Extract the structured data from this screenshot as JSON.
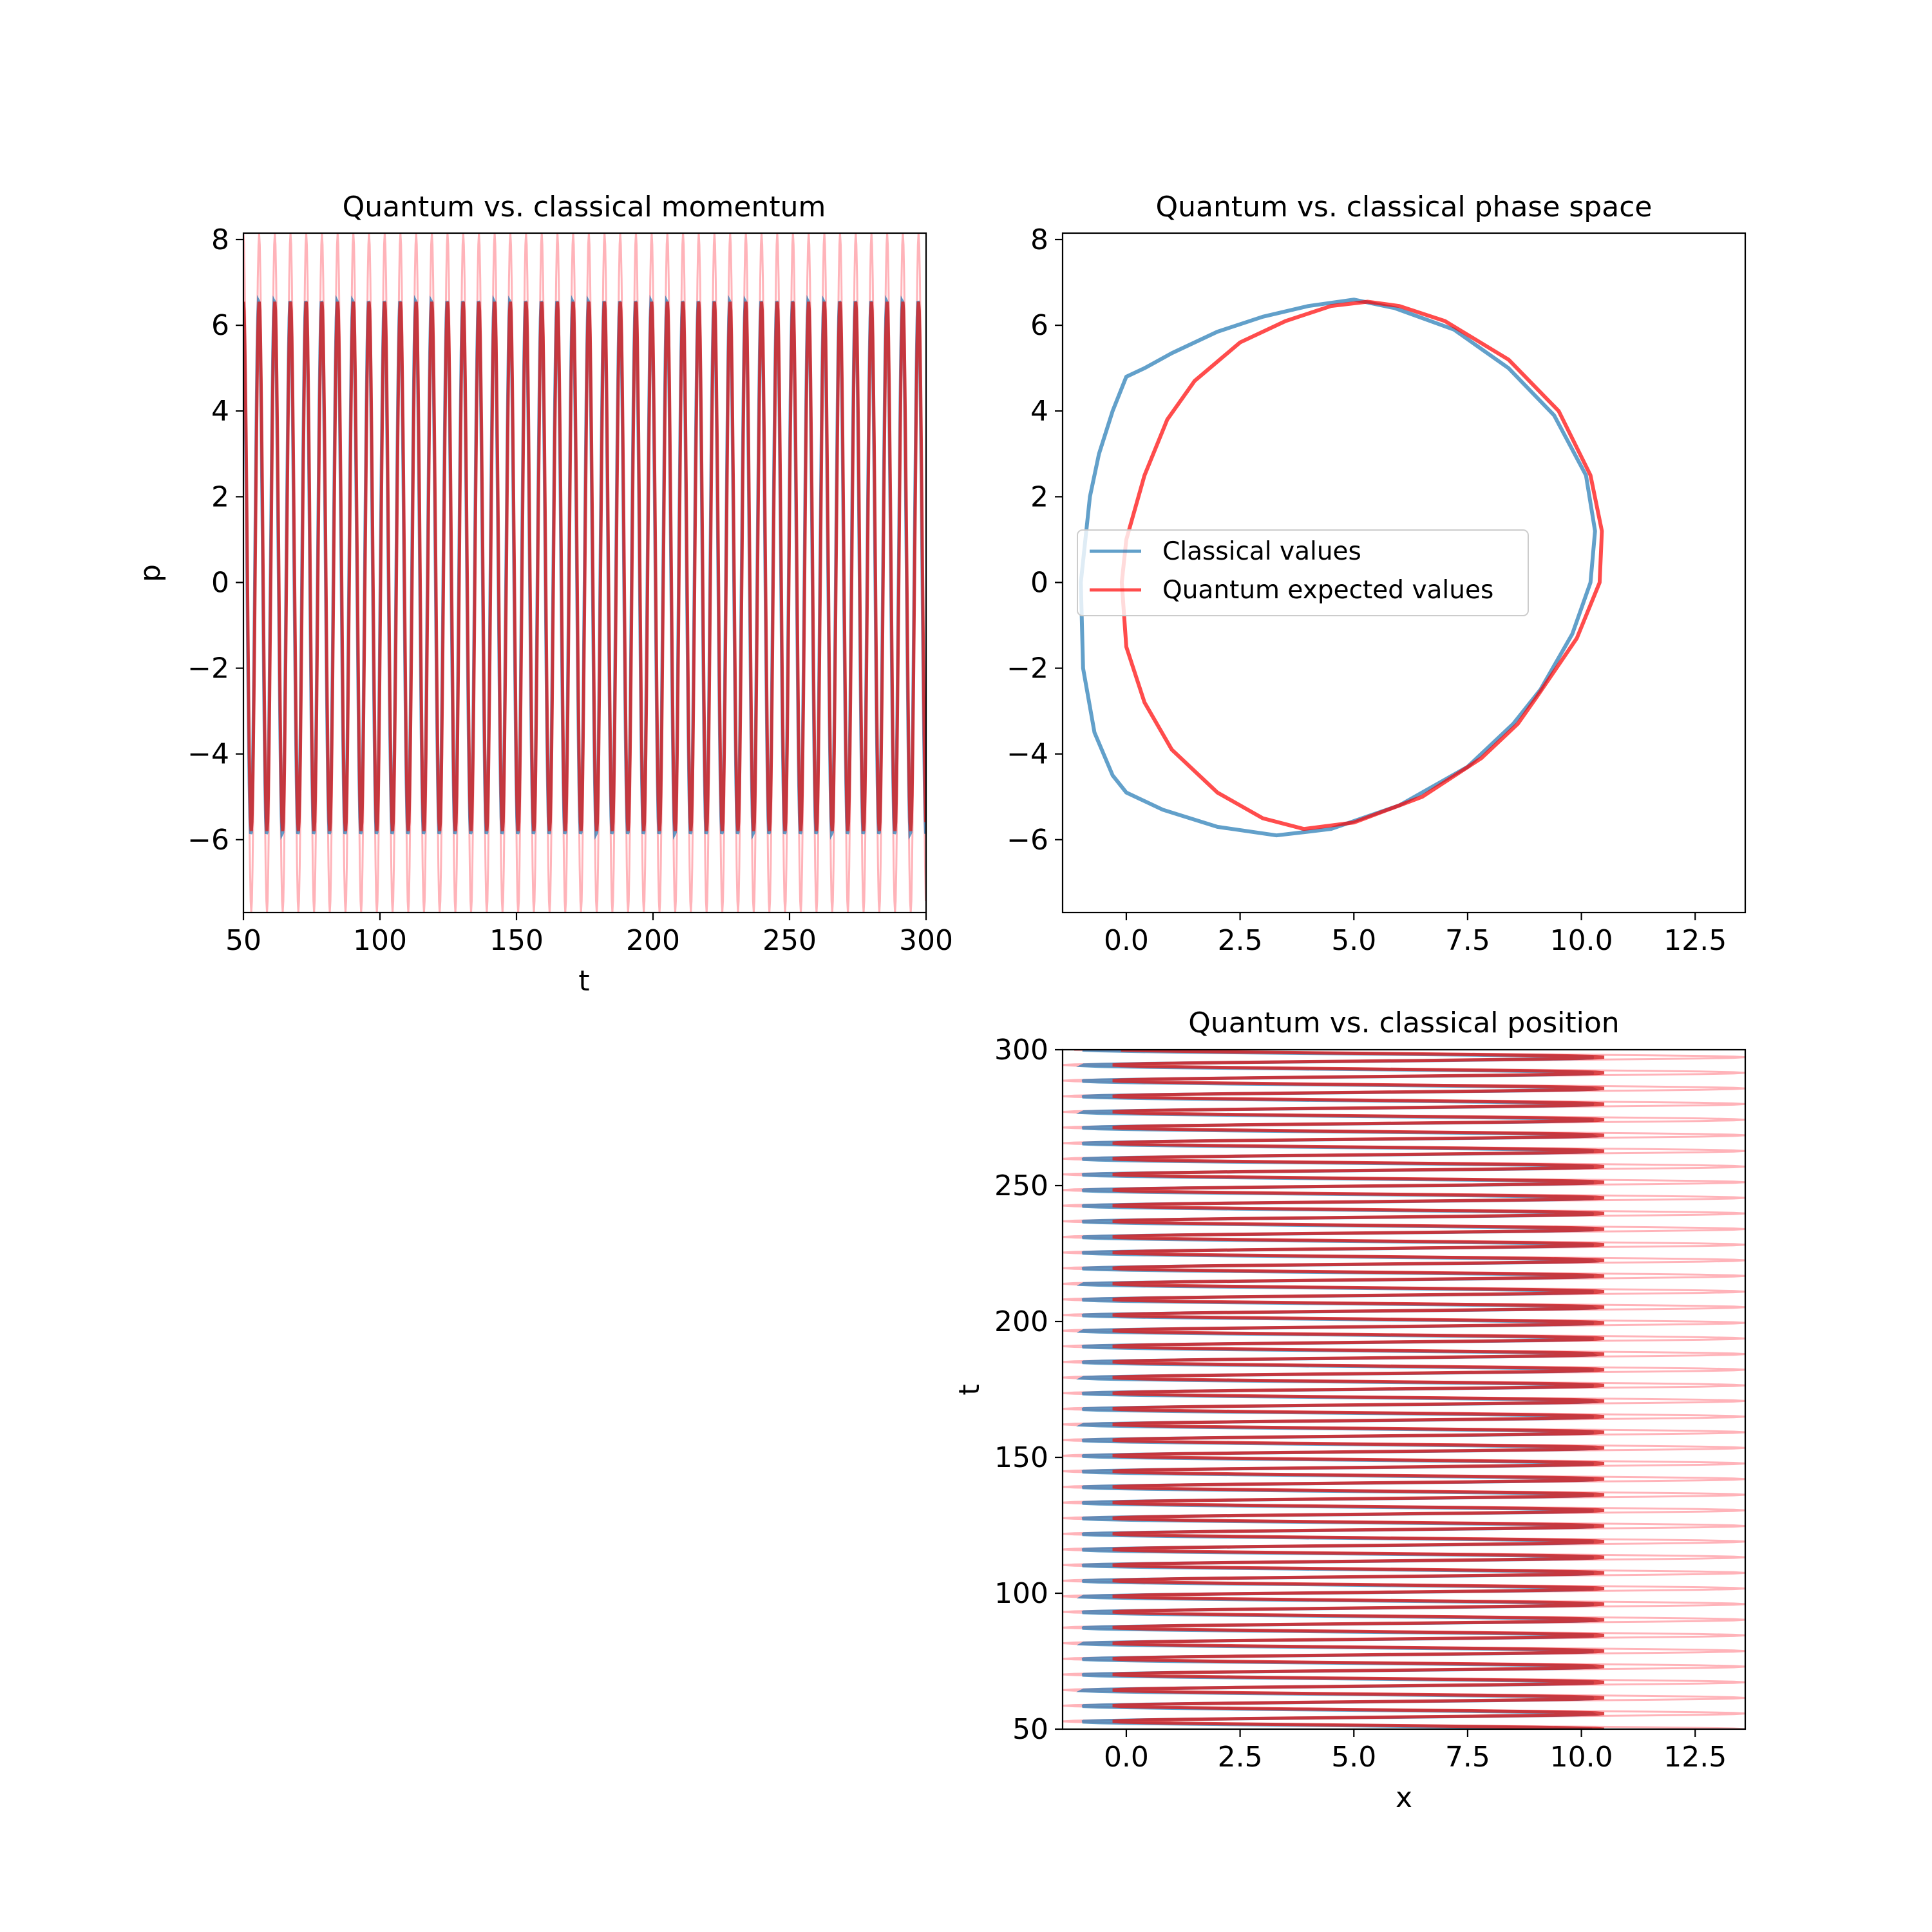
{
  "chart_data": [
    {
      "type": "line",
      "title": "Quantum vs. classical momentum",
      "xlabel": "t",
      "ylabel": "p",
      "xlim": [
        50,
        300
      ],
      "ylim": [
        -7.7,
        8.15
      ],
      "xticks": [
        "50",
        "100",
        "150",
        "200",
        "250",
        "300"
      ],
      "yticks": [
        "−6",
        "−4",
        "−2",
        "0",
        "2",
        "4",
        "6",
        "8"
      ],
      "series": [
        {
          "style": "uncertainty-envelope",
          "color": "#ff9aa2",
          "period": 5.75,
          "amplitude_range": [
            -7.7,
            8.15
          ]
        },
        {
          "style": "classical",
          "color": "#1f77b4",
          "period": 5.75,
          "range": [
            -5.9,
            6.6
          ]
        },
        {
          "style": "quantum",
          "color": "#d62728",
          "period": 5.75,
          "range": [
            -5.8,
            6.55
          ]
        }
      ]
    },
    {
      "type": "line",
      "title": "Quantum vs. classical phase space",
      "xlabel": "",
      "ylabel": "",
      "xlim": [
        -1.4,
        13.6
      ],
      "ylim": [
        -7.7,
        8.15
      ],
      "xticks": [
        "0.0",
        "2.5",
        "5.0",
        "7.5",
        "10.0",
        "12.5"
      ],
      "yticks": [
        "−6",
        "−4",
        "−2",
        "0",
        "2",
        "4",
        "6",
        "8"
      ],
      "legend": {
        "placement": "center-left",
        "entries": [
          "Classical values",
          "Quantum expected values"
        ]
      },
      "series": [
        {
          "name": "Classical values",
          "color": "#1f77b4",
          "points": [
            [
              9.1,
              -2.5
            ],
            [
              9.8,
              -1.2
            ],
            [
              10.2,
              0.0
            ],
            [
              10.3,
              1.2
            ],
            [
              10.1,
              2.5
            ],
            [
              9.4,
              3.9
            ],
            [
              8.4,
              5.0
            ],
            [
              7.2,
              5.9
            ],
            [
              5.9,
              6.4
            ],
            [
              5.0,
              6.6
            ],
            [
              4.0,
              6.45
            ],
            [
              3.0,
              6.2
            ],
            [
              2.0,
              5.85
            ],
            [
              1.0,
              5.35
            ],
            [
              0.4,
              5.0
            ],
            [
              0.0,
              4.8
            ],
            [
              -0.3,
              4.0
            ],
            [
              -0.6,
              3.0
            ],
            [
              -0.8,
              2.0
            ],
            [
              -1.0,
              0.0
            ],
            [
              -0.95,
              -2.0
            ],
            [
              -0.7,
              -3.5
            ],
            [
              -0.3,
              -4.5
            ],
            [
              0.0,
              -4.9
            ],
            [
              0.8,
              -5.3
            ],
            [
              2.0,
              -5.7
            ],
            [
              3.3,
              -5.9
            ],
            [
              4.5,
              -5.75
            ],
            [
              6.0,
              -5.2
            ],
            [
              7.5,
              -4.3
            ],
            [
              8.5,
              -3.3
            ],
            [
              9.1,
              -2.5
            ]
          ]
        },
        {
          "name": "Quantum expected values",
          "color": "#ff0000",
          "points": [
            [
              9.0,
              -2.7
            ],
            [
              9.9,
              -1.3
            ],
            [
              10.4,
              0.0
            ],
            [
              10.45,
              1.2
            ],
            [
              10.2,
              2.5
            ],
            [
              9.5,
              4.0
            ],
            [
              8.4,
              5.2
            ],
            [
              7.0,
              6.1
            ],
            [
              6.0,
              6.45
            ],
            [
              5.3,
              6.55
            ],
            [
              4.5,
              6.45
            ],
            [
              3.5,
              6.1
            ],
            [
              2.5,
              5.6
            ],
            [
              1.5,
              4.7
            ],
            [
              0.9,
              3.8
            ],
            [
              0.4,
              2.5
            ],
            [
              0.0,
              1.0
            ],
            [
              -0.1,
              0.0
            ],
            [
              0.0,
              -1.5
            ],
            [
              0.4,
              -2.8
            ],
            [
              1.0,
              -3.9
            ],
            [
              2.0,
              -4.9
            ],
            [
              3.0,
              -5.5
            ],
            [
              3.9,
              -5.75
            ],
            [
              5.0,
              -5.6
            ],
            [
              6.5,
              -5.0
            ],
            [
              7.8,
              -4.1
            ],
            [
              8.6,
              -3.3
            ],
            [
              9.0,
              -2.7
            ]
          ]
        }
      ]
    },
    {
      "type": "line",
      "title": "Quantum vs. classical position",
      "xlabel": "x",
      "ylabel": "t",
      "xlim": [
        -1.4,
        13.6
      ],
      "ylim": [
        50,
        300
      ],
      "xticks": [
        "0.0",
        "2.5",
        "5.0",
        "7.5",
        "10.0",
        "12.5"
      ],
      "yticks": [
        "50",
        "100",
        "150",
        "200",
        "250",
        "300"
      ],
      "series": [
        {
          "style": "uncertainty-envelope",
          "color": "#ff9aa2",
          "period": 5.75,
          "range": [
            -1.4,
            13.6
          ]
        },
        {
          "style": "classical",
          "color": "#1f77b4",
          "period": 5.75,
          "range": [
            -1.0,
            10.3
          ]
        },
        {
          "style": "quantum",
          "color": "#d62728",
          "period": 5.75,
          "range": [
            -0.3,
            10.5
          ]
        }
      ]
    }
  ]
}
